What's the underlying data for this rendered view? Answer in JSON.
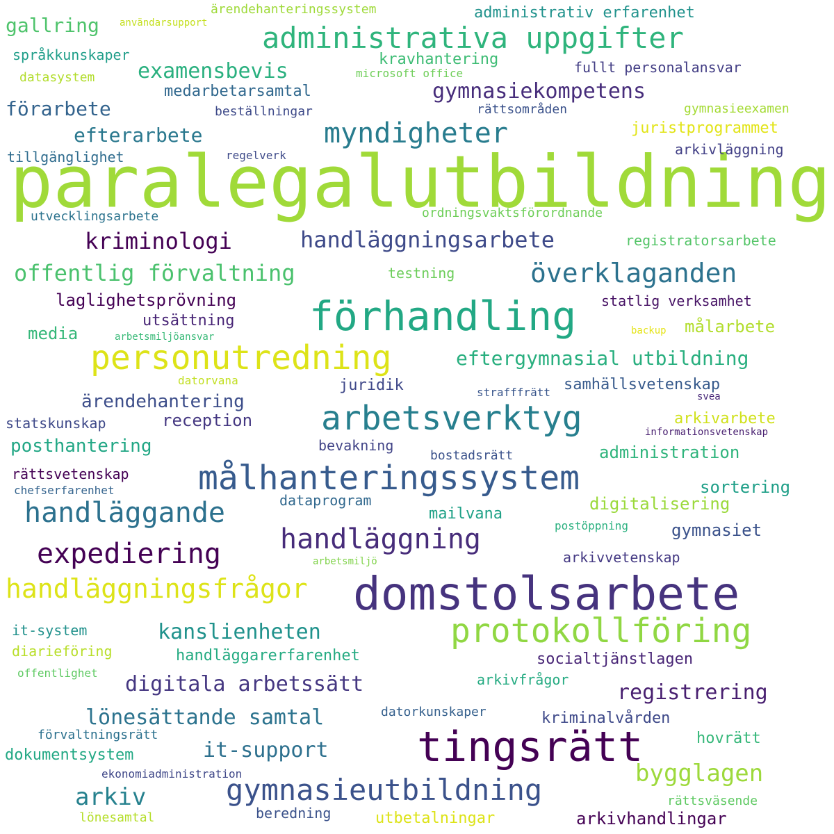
{
  "words": [
    {
      "text": "paralegalutbildning",
      "color": "#a0da39"
    },
    {
      "text": "domstolsarbete",
      "color": "#46337e"
    },
    {
      "text": "tingsrätt",
      "color": "#440154"
    },
    {
      "text": "förhandling",
      "color": "#22a884"
    },
    {
      "text": "personutredning",
      "color": "#dde318"
    },
    {
      "text": "målhanteringssystem",
      "color": "#375b8d"
    },
    {
      "text": "arbetsverktyg",
      "color": "#277f8e"
    },
    {
      "text": "protokollföring",
      "color": "#90d743"
    },
    {
      "text": "gymnasieutbildning",
      "color": "#3b528b"
    },
    {
      "text": "administrativa uppgifter",
      "color": "#2fb47c"
    },
    {
      "text": "myndigheter",
      "color": "#287c8e"
    },
    {
      "text": "handläggning",
      "color": "#472c7a"
    },
    {
      "text": "expediering",
      "color": "#440154"
    },
    {
      "text": "handläggande",
      "color": "#2c718e"
    },
    {
      "text": "handläggningsfrågor",
      "color": "#dde318"
    },
    {
      "text": "överklaganden",
      "color": "#2c728e"
    },
    {
      "text": "handläggningsarbete",
      "color": "#3e4a89"
    },
    {
      "text": "offentlig förvaltning",
      "color": "#4ac16d"
    },
    {
      "text": "kriminologi",
      "color": "#440154"
    },
    {
      "text": "gymnasiekompetens",
      "color": "#472d7b"
    },
    {
      "text": "examensbevis",
      "color": "#2ab07f"
    },
    {
      "text": "efterarbete",
      "color": "#2a788e"
    },
    {
      "text": "förarbete",
      "color": "#33638d"
    },
    {
      "text": "gallring",
      "color": "#4ec36b"
    },
    {
      "text": "kanslienheten",
      "color": "#20928c"
    },
    {
      "text": "digitala arbetssätt",
      "color": "#453781"
    },
    {
      "text": "lönesättande samtal",
      "color": "#2c738e"
    },
    {
      "text": "it-support",
      "color": "#2d708e"
    },
    {
      "text": "arkiv",
      "color": "#26818e"
    },
    {
      "text": "bygglagen",
      "color": "#9dd93b"
    },
    {
      "text": "registrering",
      "color": "#481f70"
    },
    {
      "text": "eftergymnasial utbildning",
      "color": "#29af7f"
    },
    {
      "text": "ärendehantering",
      "color": "#3d4e8a"
    },
    {
      "text": "posthantering",
      "color": "#22a785"
    },
    {
      "text": "laglighetsprövning",
      "color": "#440154"
    },
    {
      "text": "utsättning",
      "color": "#482576"
    },
    {
      "text": "media",
      "color": "#35b779"
    },
    {
      "text": "reception",
      "color": "#453882"
    },
    {
      "text": "juridik",
      "color": "#3f4889"
    },
    {
      "text": "samhällsvetenskap",
      "color": "#375a8c"
    },
    {
      "text": "administration",
      "color": "#2fb47c"
    },
    {
      "text": "arkivarbete",
      "color": "#d0e11c"
    },
    {
      "text": "sortering",
      "color": "#1f9f88"
    },
    {
      "text": "digitalisering",
      "color": "#9bd93c"
    },
    {
      "text": "gymnasiet",
      "color": "#3b528b"
    },
    {
      "text": "mailvana",
      "color": "#1fa187"
    },
    {
      "text": "dataprogram",
      "color": "#31688e"
    },
    {
      "text": "arkivvetenskap",
      "color": "#443983"
    },
    {
      "text": "socialtjänstlagen",
      "color": "#482576"
    },
    {
      "text": "handläggarerfarenhet",
      "color": "#25ab82"
    },
    {
      "text": "kriminalvården",
      "color": "#3e4989"
    },
    {
      "text": "dokumentsystem",
      "color": "#22a884"
    },
    {
      "text": "hovrätt",
      "color": "#35b779"
    },
    {
      "text": "arkivhandlingar",
      "color": "#440154"
    },
    {
      "text": "utbetalningar",
      "color": "#dde318"
    },
    {
      "text": "beredning",
      "color": "#3b528b"
    },
    {
      "text": "lönesamtal",
      "color": "#b5de2b"
    },
    {
      "text": "rättsväsende",
      "color": "#5ec962"
    },
    {
      "text": "ekonomiadministration",
      "color": "#3f4788"
    },
    {
      "text": "förvaltningsrätt",
      "color": "#2c718e"
    },
    {
      "text": "offentlighet",
      "color": "#5ec962"
    },
    {
      "text": "diarieföring",
      "color": "#b8de29"
    },
    {
      "text": "it-system",
      "color": "#21918c"
    },
    {
      "text": "chefserfarenhet",
      "color": "#33638d"
    },
    {
      "text": "rättsvetenskap",
      "color": "#440154"
    },
    {
      "text": "statskunskap",
      "color": "#3e4989"
    },
    {
      "text": "datorvana",
      "color": "#c2df23"
    },
    {
      "text": "arbetsmiljöansvar",
      "color": "#38b977"
    },
    {
      "text": "bevakning",
      "color": "#414487"
    },
    {
      "text": "bostadsrätt",
      "color": "#3b528b"
    },
    {
      "text": "informationsvetenskap",
      "color": "#481f70"
    },
    {
      "text": "strafffrätt",
      "color": "#39568c"
    },
    {
      "text": "svea",
      "color": "#482878"
    },
    {
      "text": "backup",
      "color": "#e5e419"
    },
    {
      "text": "målarbete",
      "color": "#b2dd2d"
    },
    {
      "text": "statlig verksamhet",
      "color": "#471365"
    },
    {
      "text": "testning",
      "color": "#6ccd5a"
    },
    {
      "text": "registratorsarbete",
      "color": "#54c568"
    },
    {
      "text": "ordningsvaktsförordnande",
      "color": "#6ece58"
    },
    {
      "text": "utvecklingsarbete",
      "color": "#2c738e"
    },
    {
      "text": "tillgänglighet",
      "color": "#2f6c8e"
    },
    {
      "text": "regelverk",
      "color": "#3e4a89"
    },
    {
      "text": "arkivläggning",
      "color": "#424086"
    },
    {
      "text": "juristprogrammet",
      "color": "#e2e418"
    },
    {
      "text": "gymnasieexamen",
      "color": "#a5db36"
    },
    {
      "text": "rättsområden",
      "color": "#3b528b"
    },
    {
      "text": "beställningar",
      "color": "#3e4a89"
    },
    {
      "text": "medarbetarsamtal",
      "color": "#31688e"
    },
    {
      "text": "fullt personalansvar",
      "color": "#433e85"
    },
    {
      "text": "kravhantering",
      "color": "#3dbc74"
    },
    {
      "text": "microsoft office",
      "color": "#6ece58"
    },
    {
      "text": "datasystem",
      "color": "#b2dd2d"
    },
    {
      "text": "språkkunskaper",
      "color": "#1f9e89"
    },
    {
      "text": "användarsupport",
      "color": "#c5e021"
    },
    {
      "text": "ärendehanteringssystem",
      "color": "#9fda3a"
    },
    {
      "text": "administrativ erfarenhet",
      "color": "#20928c"
    },
    {
      "text": "arbetsmiljö",
      "color": "#80d34a"
    },
    {
      "text": "postöppning",
      "color": "#2ab07f"
    },
    {
      "text": "datorkunskaper",
      "color": "#35608d"
    },
    {
      "text": "arkivfrågor",
      "color": "#25ab82"
    }
  ]
}
